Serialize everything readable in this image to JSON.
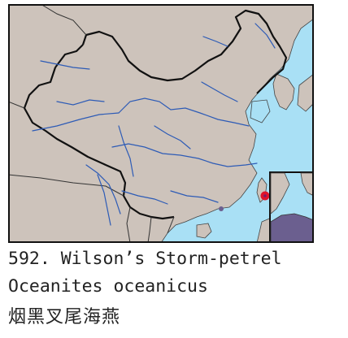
{
  "caption": {
    "title": "592. Wilson’s Storm-petrel",
    "scientific_name": "Oceanites oceanicus",
    "chinese_name": "烟黑叉尾海燕"
  },
  "map": {
    "land_color": "#cdc3bb",
    "sea_color": "#a9e0f5",
    "river_color": "#2d5bb6",
    "border_color": "#111111",
    "range_color": "#6b5f8f",
    "record_marker_color": "#e0132b",
    "record_marker_fill": "#7a1a6a"
  }
}
